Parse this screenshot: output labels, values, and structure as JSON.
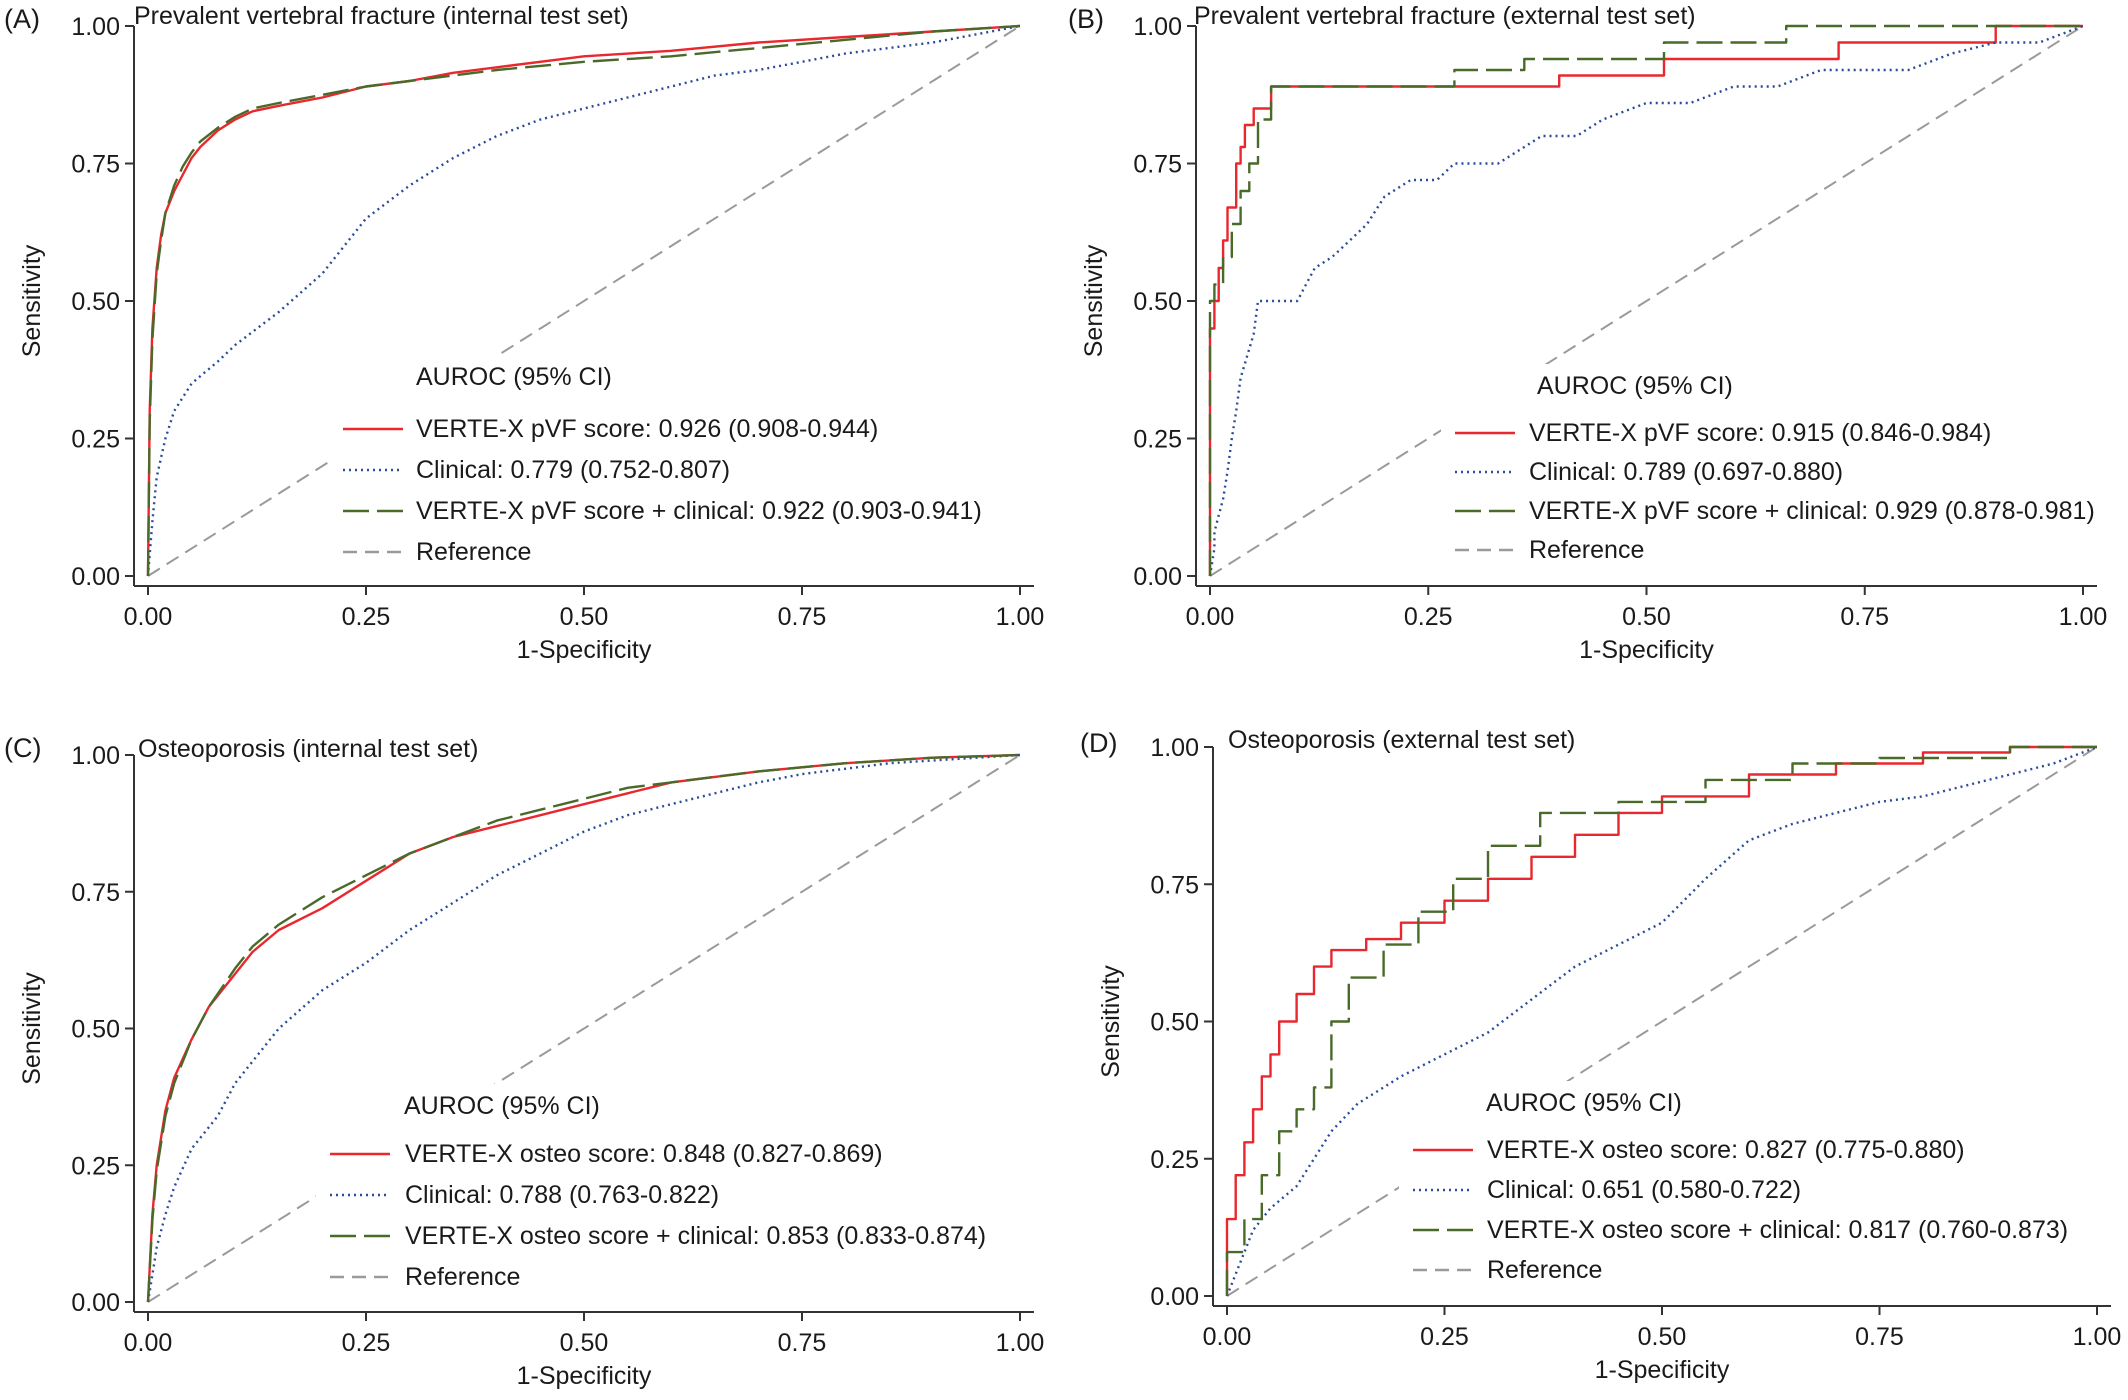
{
  "figure": {
    "series_styles": {
      "score": {
        "color": "#e8282e",
        "dash": ""
      },
      "clinical": {
        "color": "#2a4a9a",
        "dash": "2 4"
      },
      "combined": {
        "color": "#4a6a2a",
        "dash": "26 8"
      },
      "reference": {
        "color": "#9a9a9a",
        "dash": "14 8"
      }
    }
  },
  "chart_data": [
    {
      "type": "line",
      "panel": "(A)",
      "title": "Prevalent vertebral fracture (internal test set)",
      "xlabel": "1-Specificity",
      "ylabel": "Sensitivity",
      "xlim": [
        0,
        1
      ],
      "ylim": [
        0,
        1
      ],
      "xticks": [
        "0.00",
        "0.25",
        "0.50",
        "0.75",
        "1.00"
      ],
      "yticks": [
        "0.00",
        "0.25",
        "0.50",
        "0.75",
        "1.00"
      ],
      "legend_title": "AUROC (95% CI)",
      "series": [
        {
          "name": "VERTE-X pVF score: 0.926 (0.908-0.944)",
          "style": "score",
          "x": [
            0,
            0.002,
            0.005,
            0.01,
            0.015,
            0.02,
            0.03,
            0.04,
            0.05,
            0.06,
            0.08,
            0.1,
            0.12,
            0.15,
            0.2,
            0.25,
            0.3,
            0.35,
            0.4,
            0.5,
            0.6,
            0.7,
            0.8,
            0.9,
            1.0
          ],
          "y": [
            0,
            0.3,
            0.45,
            0.56,
            0.62,
            0.66,
            0.7,
            0.73,
            0.76,
            0.78,
            0.81,
            0.83,
            0.845,
            0.855,
            0.87,
            0.89,
            0.9,
            0.915,
            0.925,
            0.945,
            0.955,
            0.97,
            0.98,
            0.99,
            1.0
          ]
        },
        {
          "name": "Clinical: 0.779 (0.752-0.807)",
          "style": "clinical",
          "x": [
            0,
            0.005,
            0.01,
            0.02,
            0.03,
            0.05,
            0.08,
            0.1,
            0.15,
            0.2,
            0.25,
            0.3,
            0.35,
            0.4,
            0.45,
            0.5,
            0.55,
            0.6,
            0.65,
            0.7,
            0.75,
            0.8,
            0.85,
            0.9,
            0.95,
            1.0
          ],
          "y": [
            0,
            0.1,
            0.18,
            0.25,
            0.3,
            0.35,
            0.39,
            0.42,
            0.48,
            0.55,
            0.65,
            0.71,
            0.76,
            0.8,
            0.83,
            0.85,
            0.87,
            0.89,
            0.91,
            0.92,
            0.935,
            0.95,
            0.96,
            0.97,
            0.985,
            1.0
          ]
        },
        {
          "name": "VERTE-X pVF score + clinical: 0.922 (0.903-0.941)",
          "style": "combined",
          "x": [
            0,
            0.002,
            0.005,
            0.01,
            0.015,
            0.02,
            0.03,
            0.04,
            0.05,
            0.06,
            0.08,
            0.1,
            0.12,
            0.15,
            0.2,
            0.25,
            0.3,
            0.35,
            0.4,
            0.5,
            0.6,
            0.7,
            0.8,
            0.9,
            1.0
          ],
          "y": [
            0,
            0.28,
            0.43,
            0.55,
            0.61,
            0.66,
            0.71,
            0.745,
            0.77,
            0.79,
            0.815,
            0.835,
            0.85,
            0.86,
            0.875,
            0.89,
            0.9,
            0.91,
            0.92,
            0.935,
            0.945,
            0.96,
            0.975,
            0.99,
            1.0
          ]
        },
        {
          "name": "Reference",
          "style": "reference",
          "x": [
            0,
            1
          ],
          "y": [
            0,
            1
          ]
        }
      ]
    },
    {
      "type": "line",
      "panel": "(B)",
      "title": "Prevalent vertebral fracture (external test set)",
      "xlabel": "1-Specificity",
      "ylabel": "Sensitivity",
      "xlim": [
        0,
        1
      ],
      "ylim": [
        0,
        1
      ],
      "xticks": [
        "0.00",
        "0.25",
        "0.50",
        "0.75",
        "1.00"
      ],
      "yticks": [
        "0.00",
        "0.25",
        "0.50",
        "0.75",
        "1.00"
      ],
      "legend_title": "AUROC (95% CI)",
      "series": [
        {
          "name": "VERTE-X pVF score: 0.915 (0.846-0.984)",
          "style": "score",
          "x": [
            0,
            0,
            0.005,
            0.005,
            0.01,
            0.01,
            0.015,
            0.015,
            0.02,
            0.02,
            0.03,
            0.03,
            0.035,
            0.035,
            0.04,
            0.04,
            0.05,
            0.05,
            0.07,
            0.07,
            0.4,
            0.4,
            0.52,
            0.52,
            0.72,
            0.72,
            0.9,
            0.9,
            1.0
          ],
          "y": [
            0,
            0.45,
            0.45,
            0.5,
            0.5,
            0.56,
            0.56,
            0.61,
            0.61,
            0.67,
            0.67,
            0.75,
            0.75,
            0.78,
            0.78,
            0.82,
            0.82,
            0.85,
            0.85,
            0.89,
            0.89,
            0.91,
            0.91,
            0.94,
            0.94,
            0.97,
            0.97,
            1.0,
            1.0
          ]
        },
        {
          "name": "Clinical: 0.789 (0.697-0.880)",
          "style": "clinical",
          "x": [
            0,
            0.005,
            0.005,
            0.01,
            0.015,
            0.02,
            0.025,
            0.03,
            0.035,
            0.05,
            0.055,
            0.07,
            0.08,
            0.1,
            0.11,
            0.12,
            0.14,
            0.16,
            0.18,
            0.2,
            0.23,
            0.26,
            0.28,
            0.33,
            0.38,
            0.42,
            0.45,
            0.5,
            0.55,
            0.6,
            0.65,
            0.7,
            0.8,
            0.85,
            0.9,
            0.95,
            1.0
          ],
          "y": [
            0,
            0.05,
            0.08,
            0.11,
            0.14,
            0.19,
            0.25,
            0.3,
            0.36,
            0.44,
            0.5,
            0.5,
            0.5,
            0.5,
            0.53,
            0.56,
            0.58,
            0.61,
            0.64,
            0.69,
            0.72,
            0.72,
            0.75,
            0.75,
            0.8,
            0.8,
            0.83,
            0.86,
            0.86,
            0.89,
            0.89,
            0.92,
            0.92,
            0.95,
            0.97,
            0.97,
            1.0
          ]
        },
        {
          "name": "VERTE-X pVF score + clinical: 0.929 (0.878-0.981)",
          "style": "combined",
          "x": [
            0,
            0,
            0.005,
            0.005,
            0.015,
            0.015,
            0.025,
            0.025,
            0.035,
            0.035,
            0.045,
            0.045,
            0.055,
            0.055,
            0.07,
            0.07,
            0.28,
            0.28,
            0.36,
            0.36,
            0.52,
            0.52,
            0.66,
            0.66,
            1.0
          ],
          "y": [
            0,
            0.5,
            0.5,
            0.53,
            0.53,
            0.58,
            0.58,
            0.64,
            0.64,
            0.7,
            0.7,
            0.75,
            0.75,
            0.83,
            0.83,
            0.89,
            0.89,
            0.92,
            0.92,
            0.94,
            0.94,
            0.97,
            0.97,
            1.0,
            1.0
          ]
        },
        {
          "name": "Reference",
          "style": "reference",
          "x": [
            0,
            1
          ],
          "y": [
            0,
            1
          ]
        }
      ]
    },
    {
      "type": "line",
      "panel": "(C)",
      "title": "Osteoporosis (internal test set)",
      "xlabel": "1-Specificity",
      "ylabel": "Sensitivity",
      "xlim": [
        0,
        1
      ],
      "ylim": [
        0,
        1
      ],
      "xticks": [
        "0.00",
        "0.25",
        "0.50",
        "0.75",
        "1.00"
      ],
      "yticks": [
        "0.00",
        "0.25",
        "0.50",
        "0.75",
        "1.00"
      ],
      "legend_title": "AUROC (95% CI)",
      "series": [
        {
          "name": "VERTE-X osteo score: 0.848 (0.827-0.869)",
          "style": "score",
          "x": [
            0,
            0.005,
            0.01,
            0.02,
            0.03,
            0.05,
            0.07,
            0.1,
            0.12,
            0.15,
            0.2,
            0.25,
            0.3,
            0.35,
            0.4,
            0.45,
            0.5,
            0.55,
            0.6,
            0.7,
            0.8,
            0.9,
            1.0
          ],
          "y": [
            0,
            0.16,
            0.25,
            0.35,
            0.41,
            0.48,
            0.54,
            0.6,
            0.64,
            0.68,
            0.72,
            0.77,
            0.82,
            0.85,
            0.87,
            0.89,
            0.91,
            0.93,
            0.95,
            0.97,
            0.985,
            0.995,
            1.0
          ]
        },
        {
          "name": "Clinical: 0.788 (0.763-0.822)",
          "style": "clinical",
          "x": [
            0,
            0.005,
            0.01,
            0.02,
            0.03,
            0.05,
            0.08,
            0.1,
            0.15,
            0.2,
            0.25,
            0.3,
            0.35,
            0.4,
            0.45,
            0.5,
            0.55,
            0.6,
            0.65,
            0.7,
            0.75,
            0.8,
            0.85,
            0.9,
            0.95,
            1.0
          ],
          "y": [
            0,
            0.05,
            0.1,
            0.16,
            0.21,
            0.28,
            0.34,
            0.4,
            0.5,
            0.57,
            0.62,
            0.68,
            0.73,
            0.78,
            0.82,
            0.86,
            0.89,
            0.91,
            0.93,
            0.95,
            0.965,
            0.975,
            0.985,
            0.99,
            0.995,
            1.0
          ]
        },
        {
          "name": "VERTE-X osteo score + clinical: 0.853 (0.833-0.874)",
          "style": "combined",
          "x": [
            0,
            0.005,
            0.01,
            0.02,
            0.03,
            0.05,
            0.07,
            0.1,
            0.12,
            0.15,
            0.2,
            0.25,
            0.3,
            0.35,
            0.4,
            0.45,
            0.5,
            0.55,
            0.6,
            0.7,
            0.8,
            0.9,
            1.0
          ],
          "y": [
            0,
            0.15,
            0.24,
            0.34,
            0.4,
            0.48,
            0.54,
            0.61,
            0.65,
            0.69,
            0.74,
            0.78,
            0.82,
            0.85,
            0.88,
            0.9,
            0.92,
            0.94,
            0.95,
            0.97,
            0.985,
            0.995,
            1.0
          ]
        },
        {
          "name": "Reference",
          "style": "reference",
          "x": [
            0,
            1
          ],
          "y": [
            0,
            1
          ]
        }
      ]
    },
    {
      "type": "line",
      "panel": "(D)",
      "title": "Osteoporosis (external test set)",
      "xlabel": "1-Specificity",
      "ylabel": "Sensitivity",
      "xlim": [
        0,
        1
      ],
      "ylim": [
        0,
        1
      ],
      "xticks": [
        "0.00",
        "0.25",
        "0.50",
        "0.75",
        "1.00"
      ],
      "yticks": [
        "0.00",
        "0.25",
        "0.50",
        "0.75",
        "1.00"
      ],
      "legend_title": "AUROC (95% CI)",
      "series": [
        {
          "name": "VERTE-X osteo score: 0.827 (0.775-0.880)",
          "style": "score",
          "x": [
            0,
            0,
            0.01,
            0.01,
            0.02,
            0.02,
            0.03,
            0.03,
            0.04,
            0.04,
            0.05,
            0.05,
            0.06,
            0.06,
            0.08,
            0.08,
            0.1,
            0.1,
            0.12,
            0.12,
            0.16,
            0.16,
            0.2,
            0.2,
            0.25,
            0.25,
            0.3,
            0.3,
            0.35,
            0.35,
            0.4,
            0.4,
            0.45,
            0.45,
            0.5,
            0.5,
            0.6,
            0.6,
            0.7,
            0.7,
            0.8,
            0.8,
            0.9,
            0.9,
            1.0
          ],
          "y": [
            0,
            0.14,
            0.14,
            0.22,
            0.22,
            0.28,
            0.28,
            0.34,
            0.34,
            0.4,
            0.4,
            0.44,
            0.44,
            0.5,
            0.5,
            0.55,
            0.55,
            0.6,
            0.6,
            0.63,
            0.63,
            0.65,
            0.65,
            0.68,
            0.68,
            0.72,
            0.72,
            0.76,
            0.76,
            0.8,
            0.8,
            0.84,
            0.84,
            0.88,
            0.88,
            0.91,
            0.91,
            0.95,
            0.95,
            0.97,
            0.97,
            0.99,
            0.99,
            1.0,
            1.0
          ]
        },
        {
          "name": "Clinical: 0.651 (0.580-0.722)",
          "style": "clinical",
          "x": [
            0,
            0.01,
            0.02,
            0.03,
            0.05,
            0.08,
            0.1,
            0.12,
            0.15,
            0.2,
            0.25,
            0.3,
            0.35,
            0.4,
            0.45,
            0.5,
            0.55,
            0.6,
            0.65,
            0.7,
            0.75,
            0.8,
            0.85,
            0.9,
            0.95,
            1.0
          ],
          "y": [
            0,
            0.04,
            0.08,
            0.12,
            0.16,
            0.2,
            0.25,
            0.3,
            0.35,
            0.4,
            0.44,
            0.48,
            0.54,
            0.6,
            0.64,
            0.68,
            0.76,
            0.83,
            0.86,
            0.88,
            0.9,
            0.91,
            0.93,
            0.95,
            0.97,
            1.0
          ]
        },
        {
          "name": "VERTE-X osteo score + clinical: 0.817 (0.760-0.873)",
          "style": "combined",
          "x": [
            0,
            0,
            0.02,
            0.02,
            0.04,
            0.04,
            0.06,
            0.06,
            0.08,
            0.08,
            0.1,
            0.1,
            0.12,
            0.12,
            0.14,
            0.14,
            0.18,
            0.18,
            0.22,
            0.22,
            0.26,
            0.26,
            0.3,
            0.3,
            0.36,
            0.36,
            0.45,
            0.45,
            0.55,
            0.55,
            0.65,
            0.65,
            0.75,
            0.75,
            0.9,
            0.9,
            1.0
          ],
          "y": [
            0,
            0.08,
            0.08,
            0.14,
            0.14,
            0.22,
            0.22,
            0.3,
            0.3,
            0.34,
            0.34,
            0.38,
            0.38,
            0.5,
            0.5,
            0.58,
            0.58,
            0.64,
            0.64,
            0.7,
            0.7,
            0.76,
            0.76,
            0.82,
            0.82,
            0.88,
            0.88,
            0.9,
            0.9,
            0.94,
            0.94,
            0.97,
            0.97,
            0.98,
            0.98,
            1.0,
            1.0
          ]
        },
        {
          "name": "Reference",
          "style": "reference",
          "x": [
            0,
            1
          ],
          "y": [
            0,
            1
          ]
        }
      ]
    }
  ]
}
